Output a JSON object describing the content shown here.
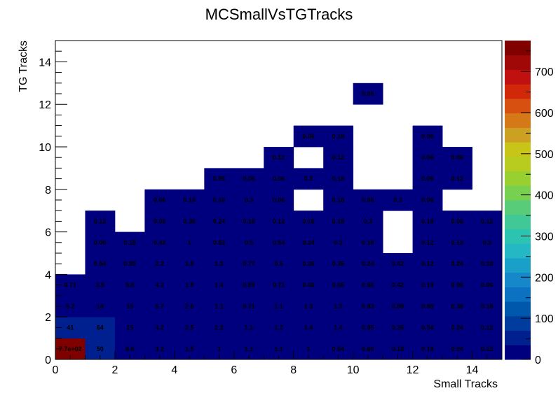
{
  "chart_data": {
    "type": "heatmap",
    "title": "MCSmallVsTGTracks",
    "xlabel": "Small Tracks",
    "ylabel": "TG Tracks",
    "xlim": [
      0,
      15
    ],
    "ylim": [
      0,
      15
    ],
    "zlim": [
      0,
      775
    ],
    "x_ticks": [
      "0",
      "2",
      "4",
      "6",
      "8",
      "10",
      "12",
      "14"
    ],
    "y_ticks": [
      "0",
      "2",
      "4",
      "6",
      "8",
      "10",
      "12",
      "14"
    ],
    "z_ticks": [
      "0",
      "100",
      "200",
      "300",
      "400",
      "500",
      "600",
      "700"
    ],
    "grid": false,
    "palette": [
      "#00007f",
      "#00208f",
      "#003c9e",
      "#0058ad",
      "#0a72c0",
      "#1687c8",
      "#1aa0c8",
      "#23b8c4",
      "#2cc4b0",
      "#40c896",
      "#58cc78",
      "#78d050",
      "#98d030",
      "#b8cc20",
      "#c8c418",
      "#cca020",
      "#d47818",
      "#d85010",
      "#d02808",
      "#c01010",
      "#a00808",
      "#800000"
    ],
    "rows": [
      {
        "y": 0,
        "values": [
          770,
          50,
          8.8,
          3.2,
          1.5,
          1,
          1.1,
          1.1,
          1,
          0.54,
          0.66,
          0.18,
          0.18,
          0.24,
          0.12
        ],
        "labels": [
          "7.7e+02",
          "50",
          "8.8",
          "3.2",
          "1.5",
          "1",
          "1.1",
          "1.1",
          "1",
          "0.54",
          "0.66",
          "0.18",
          "0.18",
          "0.24",
          "0.12"
        ]
      },
      {
        "y": 1,
        "values": [
          41,
          64,
          15,
          4.2,
          2.5,
          2.3,
          1.1,
          1.2,
          1.4,
          1.4,
          0.95,
          0.36,
          0.54,
          0.24,
          0.12
        ],
        "labels": [
          "41",
          "64",
          "15",
          "4.2",
          "2.5",
          "2.3",
          "1.1",
          "1.2",
          "1.4",
          "1.4",
          "0.95",
          "0.36",
          "0.54",
          "0.24",
          "0.12"
        ]
      },
      {
        "y": 2,
        "values": [
          5.2,
          14,
          15,
          6.7,
          2.6,
          1.1,
          0.71,
          1.1,
          1.3,
          1.3,
          0.83,
          0.89,
          0.89,
          0.36,
          0.18
        ],
        "labels": [
          "5.2",
          "14",
          "15",
          "6.7",
          "2.6",
          "1.1",
          "0.71",
          "1.1",
          "1.3",
          "1.3",
          "0.83",
          "0.89",
          "0.89",
          "0.36",
          "0.18"
        ]
      },
      {
        "y": 3,
        "values": [
          0.71,
          3.5,
          5.8,
          4.2,
          1.9,
          1.4,
          0.89,
          0.71,
          0.66,
          0.66,
          0.66,
          0.42,
          0.18,
          0.06,
          0.06
        ],
        "labels": [
          "0.71",
          "3.5",
          "5.8",
          "4.2",
          "1.9",
          "1.4",
          "0.89",
          "0.71",
          "0.66",
          "0.66",
          "0.66",
          "0.42",
          "0.18",
          "0.06",
          "0.06"
        ]
      },
      {
        "y": 4,
        "values": [
          null,
          0.54,
          0.95,
          2.2,
          1.8,
          1.3,
          0.77,
          0.6,
          0.06,
          0.36,
          0.24,
          0.42,
          0.12,
          0.24,
          0.18
        ],
        "labels": [
          "",
          "0.54",
          "0.95",
          "2.2",
          "1.8",
          "1.3",
          "0.77",
          "0.6",
          "0.06",
          "0.36",
          "0.24",
          "0.42",
          "0.12",
          "0.24",
          "0.18"
        ]
      },
      {
        "y": 5,
        "values": [
          null,
          0.06,
          0.18,
          0.42,
          1,
          0.83,
          0.5,
          0.54,
          0.24,
          0.3,
          0.18,
          null,
          0.12,
          0.12,
          0.3
        ],
        "labels": [
          "",
          "0.06",
          "0.18",
          "0.42",
          "1",
          "0.83",
          "0.5",
          "0.54",
          "0.24",
          "0.3",
          "0.18",
          "",
          "0.12",
          "0.12",
          "0.3"
        ]
      },
      {
        "y": 6,
        "values": [
          null,
          0.12,
          null,
          0.06,
          0.36,
          0.24,
          0.18,
          0.12,
          0.18,
          0.18,
          0.3,
          null,
          0.18,
          0.06,
          0.12
        ],
        "labels": [
          "",
          "0.12",
          "",
          "0.06",
          "0.36",
          "0.24",
          "0.18",
          "0.12",
          "0.18",
          "0.18",
          "0.3",
          "",
          "0.18",
          "0.06",
          "0.12"
        ]
      },
      {
        "y": 7,
        "values": [
          null,
          null,
          null,
          0.06,
          0.18,
          0.18,
          0.3,
          0.06,
          null,
          0.18,
          0.06,
          0.3,
          0.06,
          null,
          null
        ],
        "labels": [
          "",
          "",
          "",
          "0.06",
          "0.18",
          "0.18",
          "0.3",
          "0.06",
          "",
          "0.18",
          "0.06",
          "0.3",
          "0.06",
          "",
          ""
        ]
      },
      {
        "y": 8,
        "values": [
          null,
          null,
          null,
          null,
          null,
          0.06,
          0.06,
          0.06,
          0.3,
          0.18,
          null,
          null,
          0.06,
          0.12,
          null
        ],
        "labels": [
          "",
          "",
          "",
          "",
          "",
          "0.06",
          "0.06",
          "0.06",
          "0.3",
          "0.18",
          "",
          "",
          "0.06",
          "0.12",
          ""
        ]
      },
      {
        "y": 9,
        "values": [
          null,
          null,
          null,
          null,
          null,
          null,
          null,
          0.12,
          null,
          0.12,
          null,
          null,
          0.06,
          0.06,
          null
        ],
        "labels": [
          "",
          "",
          "",
          "",
          "",
          "",
          "",
          "0.12",
          "",
          "0.12",
          "",
          "",
          "0.06",
          "0.06",
          ""
        ]
      },
      {
        "y": 10,
        "values": [
          null,
          null,
          null,
          null,
          null,
          null,
          null,
          null,
          0.06,
          0.18,
          null,
          null,
          0.06,
          null,
          null
        ],
        "labels": [
          "",
          "",
          "",
          "",
          "",
          "",
          "",
          "",
          "0.06",
          "0.18",
          "",
          "",
          "0.06",
          "",
          ""
        ]
      },
      {
        "y": 11,
        "values": [
          null,
          null,
          null,
          null,
          null,
          null,
          null,
          null,
          null,
          null,
          null,
          null,
          null,
          null,
          null
        ],
        "labels": [
          "",
          "",
          "",
          "",
          "",
          "",
          "",
          "",
          "",
          "",
          "",
          "",
          "",
          "",
          ""
        ]
      },
      {
        "y": 12,
        "values": [
          null,
          null,
          null,
          null,
          null,
          null,
          null,
          null,
          null,
          null,
          0.06,
          null,
          null,
          null,
          null
        ],
        "labels": [
          "",
          "",
          "",
          "",
          "",
          "",
          "",
          "",
          "",
          "",
          "0.06",
          "",
          "",
          "",
          ""
        ]
      }
    ]
  }
}
